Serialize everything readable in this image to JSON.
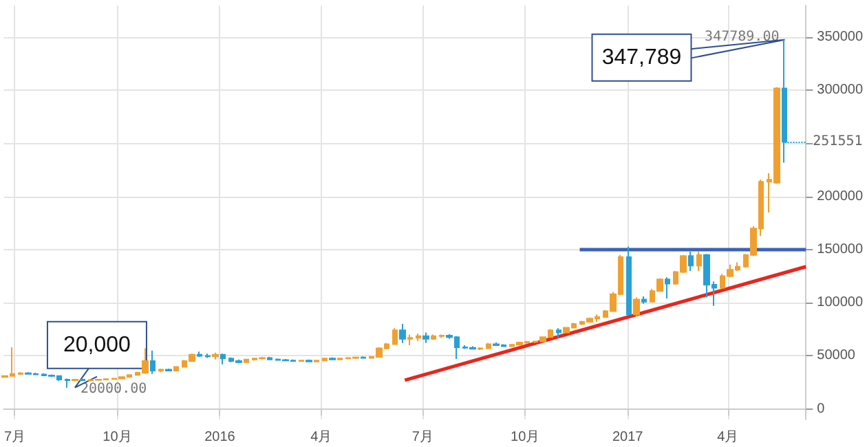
{
  "chart_data": {
    "type": "candlestick",
    "grid": true,
    "x": [
      "2015-06-22",
      "2015-06-29",
      "2015-07-06",
      "2015-07-13",
      "2015-07-20",
      "2015-07-27",
      "2015-08-03",
      "2015-08-10",
      "2015-08-17",
      "2015-08-24",
      "2015-08-31",
      "2015-09-07",
      "2015-09-14",
      "2015-09-21",
      "2015-09-28",
      "2015-10-05",
      "2015-10-12",
      "2015-10-19",
      "2015-10-26",
      "2015-11-02",
      "2015-11-09",
      "2015-11-16",
      "2015-11-23",
      "2015-11-30",
      "2015-12-07",
      "2015-12-14",
      "2015-12-21",
      "2015-12-28",
      "2016-01-04",
      "2016-01-11",
      "2016-01-18",
      "2016-01-25",
      "2016-02-01",
      "2016-02-08",
      "2016-02-15",
      "2016-02-22",
      "2016-02-29",
      "2016-03-07",
      "2016-03-14",
      "2016-03-21",
      "2016-03-28",
      "2016-04-04",
      "2016-04-11",
      "2016-04-18",
      "2016-04-25",
      "2016-05-02",
      "2016-05-09",
      "2016-05-16",
      "2016-05-23",
      "2016-05-30",
      "2016-06-06",
      "2016-06-13",
      "2016-06-20",
      "2016-06-27",
      "2016-07-04",
      "2016-07-11",
      "2016-07-18",
      "2016-07-25",
      "2016-08-01",
      "2016-08-08",
      "2016-08-15",
      "2016-08-22",
      "2016-08-29",
      "2016-09-05",
      "2016-09-12",
      "2016-09-19",
      "2016-09-26",
      "2016-10-03",
      "2016-10-10",
      "2016-10-17",
      "2016-10-24",
      "2016-10-31",
      "2016-11-07",
      "2016-11-14",
      "2016-11-21",
      "2016-11-28",
      "2016-12-05",
      "2016-12-12",
      "2016-12-19",
      "2016-12-26",
      "2017-01-02",
      "2017-01-09",
      "2017-01-16",
      "2017-01-23",
      "2017-01-30",
      "2017-02-06",
      "2017-02-13",
      "2017-02-20",
      "2017-02-27",
      "2017-03-06",
      "2017-03-13",
      "2017-03-20",
      "2017-03-27",
      "2017-04-03",
      "2017-04-10",
      "2017-04-17",
      "2017-04-24",
      "2017-05-01",
      "2017-05-08",
      "2017-05-15",
      "2017-05-22"
    ],
    "ohlc": [
      [
        30000,
        31500,
        29500,
        31000
      ],
      [
        31000,
        58000,
        30500,
        33000
      ],
      [
        33000,
        34500,
        32000,
        33500
      ],
      [
        33500,
        34500,
        32500,
        33000
      ],
      [
        33000,
        34000,
        32000,
        32500
      ],
      [
        32500,
        33500,
        31000,
        31500
      ],
      [
        31500,
        32500,
        30000,
        31000
      ],
      [
        31000,
        31500,
        26500,
        27500
      ],
      [
        27500,
        28500,
        20000,
        27000
      ],
      [
        27000,
        28000,
        26000,
        27500
      ],
      [
        27500,
        28500,
        26500,
        27000
      ],
      [
        27000,
        28000,
        26000,
        27200
      ],
      [
        27200,
        28000,
        26500,
        27500
      ],
      [
        27500,
        28500,
        27000,
        28000
      ],
      [
        28000,
        29000,
        27500,
        28500
      ],
      [
        28500,
        30500,
        28000,
        30000
      ],
      [
        30000,
        32500,
        29500,
        32000
      ],
      [
        32000,
        35000,
        31500,
        34000
      ],
      [
        34000,
        57000,
        33000,
        45000
      ],
      [
        45000,
        55000,
        33000,
        36000
      ],
      [
        36000,
        38000,
        34500,
        37000
      ],
      [
        37000,
        38000,
        35500,
        36000
      ],
      [
        36000,
        40000,
        35500,
        39500
      ],
      [
        39500,
        46000,
        39000,
        45000
      ],
      [
        45000,
        52000,
        44500,
        51000
      ],
      [
        51000,
        54000,
        49000,
        50000
      ],
      [
        50000,
        52000,
        48000,
        49500
      ],
      [
        49500,
        53000,
        46500,
        51000
      ],
      [
        51000,
        52000,
        42000,
        47500
      ],
      [
        47500,
        48500,
        44000,
        45000
      ],
      [
        45000,
        46500,
        43000,
        44000
      ],
      [
        44000,
        47000,
        43500,
        46500
      ],
      [
        46500,
        48000,
        45500,
        47500
      ],
      [
        47500,
        49000,
        46500,
        48000
      ],
      [
        48000,
        49000,
        46000,
        46500
      ],
      [
        46500,
        47500,
        45500,
        46000
      ],
      [
        46000,
        47000,
        45000,
        45500
      ],
      [
        45500,
        46500,
        44500,
        45000
      ],
      [
        45000,
        46000,
        44500,
        45500
      ],
      [
        45500,
        46500,
        44000,
        44500
      ],
      [
        44500,
        46000,
        44000,
        45500
      ],
      [
        45500,
        48000,
        45000,
        47500
      ],
      [
        47500,
        48500,
        46000,
        46500
      ],
      [
        46500,
        48000,
        46000,
        47500
      ],
      [
        47500,
        48500,
        47000,
        48000
      ],
      [
        48000,
        49000,
        47000,
        48500
      ],
      [
        48500,
        49500,
        47500,
        48000
      ],
      [
        48000,
        50000,
        47500,
        49000
      ],
      [
        49000,
        58000,
        48500,
        57000
      ],
      [
        57000,
        62000,
        56000,
        61000
      ],
      [
        61000,
        76000,
        60500,
        74000
      ],
      [
        74000,
        80000,
        62000,
        66000
      ],
      [
        66000,
        70000,
        60000,
        67000
      ],
      [
        67000,
        71000,
        64000,
        68500
      ],
      [
        68500,
        72000,
        62000,
        66000
      ],
      [
        66000,
        70000,
        65000,
        68500
      ],
      [
        68500,
        70000,
        67000,
        69000
      ],
      [
        69000,
        70500,
        66000,
        67500
      ],
      [
        67500,
        68500,
        47000,
        58000
      ],
      [
        58000,
        60000,
        56500,
        57500
      ],
      [
        57500,
        59000,
        56000,
        56500
      ],
      [
        56500,
        58000,
        55500,
        57000
      ],
      [
        57000,
        62000,
        56500,
        61000
      ],
      [
        61000,
        62500,
        59500,
        60000
      ],
      [
        60000,
        61000,
        58500,
        59000
      ],
      [
        59000,
        61000,
        58500,
        60500
      ],
      [
        60500,
        63000,
        60000,
        62500
      ],
      [
        62500,
        64000,
        61500,
        63000
      ],
      [
        63000,
        64000,
        62000,
        63500
      ],
      [
        63500,
        68000,
        63000,
        67500
      ],
      [
        67500,
        75000,
        67000,
        74000
      ],
      [
        74000,
        76000,
        67000,
        72000
      ],
      [
        72000,
        77000,
        71500,
        76500
      ],
      [
        76500,
        81000,
        76000,
        80000
      ],
      [
        80000,
        83000,
        79000,
        82000
      ],
      [
        82000,
        86000,
        81500,
        85000
      ],
      [
        85000,
        89000,
        82000,
        86500
      ],
      [
        86500,
        93000,
        86000,
        92000
      ],
      [
        92000,
        110000,
        91500,
        108000
      ],
      [
        108000,
        145000,
        107000,
        143000
      ],
      [
        143000,
        153000,
        88000,
        89000
      ],
      [
        89000,
        105000,
        87000,
        103000
      ],
      [
        103000,
        106000,
        99000,
        101000
      ],
      [
        101000,
        113000,
        100500,
        111000
      ],
      [
        111000,
        123000,
        110500,
        122000
      ],
      [
        122000,
        124000,
        104000,
        118000
      ],
      [
        118000,
        130000,
        117000,
        129000
      ],
      [
        129000,
        145000,
        128000,
        144000
      ],
      [
        144000,
        148000,
        130000,
        135000
      ],
      [
        135000,
        148000,
        130000,
        145000
      ],
      [
        145000,
        146000,
        105000,
        117000
      ],
      [
        117000,
        120000,
        97000,
        114000
      ],
      [
        114000,
        127000,
        113000,
        125000
      ],
      [
        125000,
        136000,
        124000,
        131000
      ],
      [
        131000,
        138000,
        130000,
        134000
      ],
      [
        134000,
        146000,
        133000,
        145000
      ],
      [
        145000,
        172000,
        144000,
        170000
      ],
      [
        170000,
        216000,
        163000,
        214000
      ],
      [
        214000,
        222000,
        185000,
        216000
      ],
      [
        213000,
        303000,
        212000,
        302000
      ],
      [
        302000,
        347789,
        232000,
        251551
      ]
    ],
    "colors": [
      "#f0a030",
      "#f0a030",
      "#f0a030",
      "#2a9fd6",
      "#2a9fd6",
      "#2a9fd6",
      "#2a9fd6",
      "#2a9fd6",
      "#2a9fd6",
      "#f0a030",
      "#2a9fd6",
      "#f0a030",
      "#f0a030",
      "#f0a030",
      "#f0a030",
      "#f0a030",
      "#f0a030",
      "#f0a030",
      "#f0a030",
      "#2a9fd6",
      "#f0a030",
      "#2a9fd6",
      "#f0a030",
      "#f0a030",
      "#f0a030",
      "#2a9fd6",
      "#2a9fd6",
      "#f0a030",
      "#2a9fd6",
      "#2a9fd6",
      "#2a9fd6",
      "#f0a030",
      "#f0a030",
      "#f0a030",
      "#2a9fd6",
      "#2a9fd6",
      "#2a9fd6",
      "#2a9fd6",
      "#f0a030",
      "#2a9fd6",
      "#f0a030",
      "#f0a030",
      "#2a9fd6",
      "#f0a030",
      "#f0a030",
      "#f0a030",
      "#2a9fd6",
      "#f0a030",
      "#f0a030",
      "#f0a030",
      "#f0a030",
      "#2a9fd6",
      "#f0a030",
      "#f0a030",
      "#2a9fd6",
      "#f0a030",
      "#f0a030",
      "#2a9fd6",
      "#2a9fd6",
      "#2a9fd6",
      "#2a9fd6",
      "#f0a030",
      "#f0a030",
      "#2a9fd6",
      "#2a9fd6",
      "#f0a030",
      "#f0a030",
      "#f0a030",
      "#f0a030",
      "#f0a030",
      "#f0a030",
      "#2a9fd6",
      "#f0a030",
      "#f0a030",
      "#f0a030",
      "#f0a030",
      "#f0a030",
      "#f0a030",
      "#f0a030",
      "#f0a030",
      "#2a9fd6",
      "#f0a030",
      "#2a9fd6",
      "#f0a030",
      "#f0a030",
      "#2a9fd6",
      "#f0a030",
      "#f0a030",
      "#2a9fd6",
      "#f0a030",
      "#2a9fd6",
      "#2a9fd6",
      "#f0a030",
      "#f0a030",
      "#f0a030",
      "#f0a030",
      "#f0a030",
      "#f0a030",
      "#f0a030",
      "#f0a030",
      "#2a9fd6"
    ],
    "series": [
      {
        "type": "line",
        "color": "#e8261e",
        "x": [
          "2016-06-15",
          "2017-06-10"
        ],
        "values": [
          27000,
          134000
        ]
      },
      {
        "type": "line",
        "color": "#3a62b8",
        "x": [
          "2016-11-19",
          "2017-06-10"
        ],
        "values": [
          150000,
          150000
        ]
      }
    ],
    "ref_lines": [
      {
        "axis": "y",
        "value": 251551,
        "label": "251551",
        "color": "#2a9fd6",
        "line_style": "dotted"
      }
    ],
    "annotations": [
      {
        "text": "20000.00",
        "x": "2015-08-24",
        "y": 20000
      },
      {
        "text": "20,000",
        "x": "2015-08-24",
        "y": 20000
      },
      {
        "text": "347789.00",
        "x": "2017-05-22",
        "y": 347789
      },
      {
        "text": "347,789",
        "x": "2017-05-22",
        "y": 347789
      }
    ],
    "xlim": [
      "2015-06-21",
      "2017-06-10"
    ],
    "xticks": [
      {
        "value": "2015-07-01",
        "label": "7月"
      },
      {
        "value": "2015-10-01",
        "label": "10月"
      },
      {
        "value": "2016-01-01",
        "label": "2016"
      },
      {
        "value": "2016-04-01",
        "label": "4月"
      },
      {
        "value": "2016-07-01",
        "label": "7月"
      },
      {
        "value": "2016-10-01",
        "label": "10月"
      },
      {
        "value": "2017-01-01",
        "label": "2017"
      },
      {
        "value": "2017-04-01",
        "label": "4月"
      }
    ],
    "ylim": [
      -10000,
      380000
    ],
    "yticks": [
      0,
      50000,
      100000,
      150000,
      200000,
      {
        "value": 250000,
        "label": null
      },
      300000,
      350000
    ]
  }
}
